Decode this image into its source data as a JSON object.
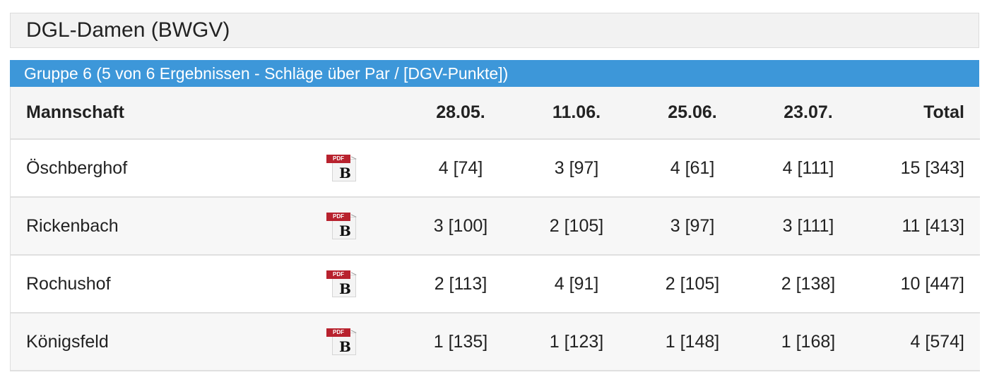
{
  "title": "DGL-Damen (BWGV)",
  "group": "Gruppe 6 (5 von 6 Ergebnissen - Schläge über Par / [DGV-Punkte])",
  "table": {
    "headers": {
      "team": "Mannschaft",
      "d1": "28.05.",
      "d2": "11.06.",
      "d3": "25.06.",
      "d4": "23.07.",
      "total": "Total"
    },
    "pdf_icon": {
      "banner": "PDF",
      "letter": "B",
      "color": "#b8222e"
    },
    "rows": [
      {
        "team": "Öschberghof",
        "d1": "4 [74]",
        "d2": "3 [97]",
        "d3": "4 [61]",
        "d4": "4 [111]",
        "total": "15 [343]"
      },
      {
        "team": "Rickenbach",
        "d1": "3 [100]",
        "d2": "2 [105]",
        "d3": "3 [97]",
        "d4": "3 [111]",
        "total": "11 [413]"
      },
      {
        "team": "Rochushof",
        "d1": "2 [113]",
        "d2": "4 [91]",
        "d3": "2 [105]",
        "d4": "2 [138]",
        "total": "10 [447]"
      },
      {
        "team": "Königsfeld",
        "d1": "1 [135]",
        "d2": "1 [123]",
        "d3": "1 [148]",
        "d4": "1 [168]",
        "total": "4 [574]"
      }
    ]
  },
  "colors": {
    "accent": "#3d97d9",
    "header_bg": "#f2f2f2"
  }
}
